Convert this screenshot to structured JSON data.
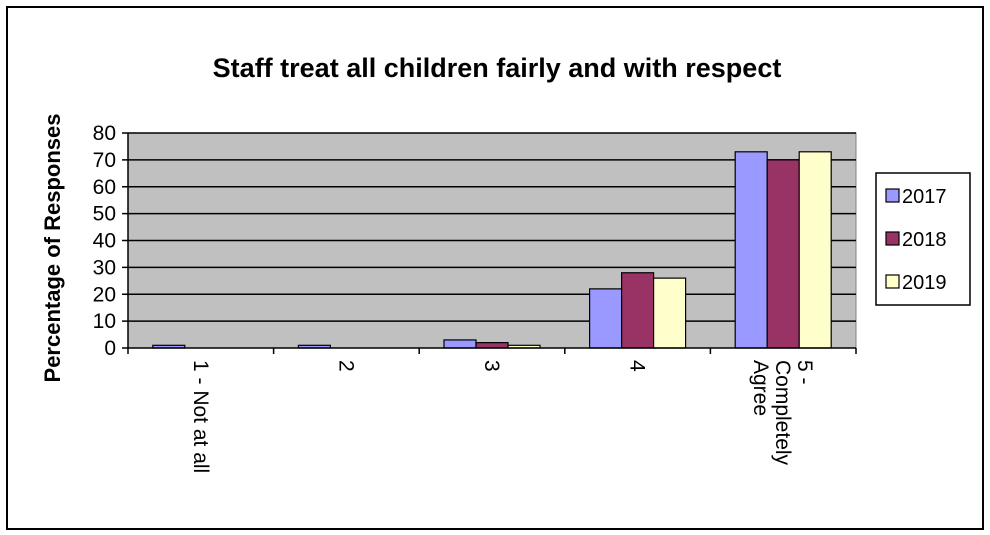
{
  "chart_data": {
    "type": "bar",
    "title": "Staff treat all children fairly and with respect",
    "xlabel": "",
    "ylabel": "Percentage of Responses",
    "ylim": [
      0,
      80
    ],
    "yticks": [
      0,
      10,
      20,
      30,
      40,
      50,
      60,
      70,
      80
    ],
    "categories": [
      [
        "1 - Not at all"
      ],
      [
        "2"
      ],
      [
        "3"
      ],
      [
        "4"
      ],
      [
        "5 -",
        "Completely",
        "Agree"
      ]
    ],
    "series": [
      {
        "name": "2017",
        "color": "#9999ff",
        "values": [
          1,
          1,
          3,
          22,
          73
        ]
      },
      {
        "name": "2018",
        "color": "#993366",
        "values": [
          0,
          0,
          2,
          28,
          70
        ]
      },
      {
        "name": "2019",
        "color": "#ffffcc",
        "values": [
          0,
          0,
          1,
          26,
          73
        ]
      }
    ],
    "grid": true,
    "plot_background": "#c0c0c0",
    "legend_position": "right"
  }
}
